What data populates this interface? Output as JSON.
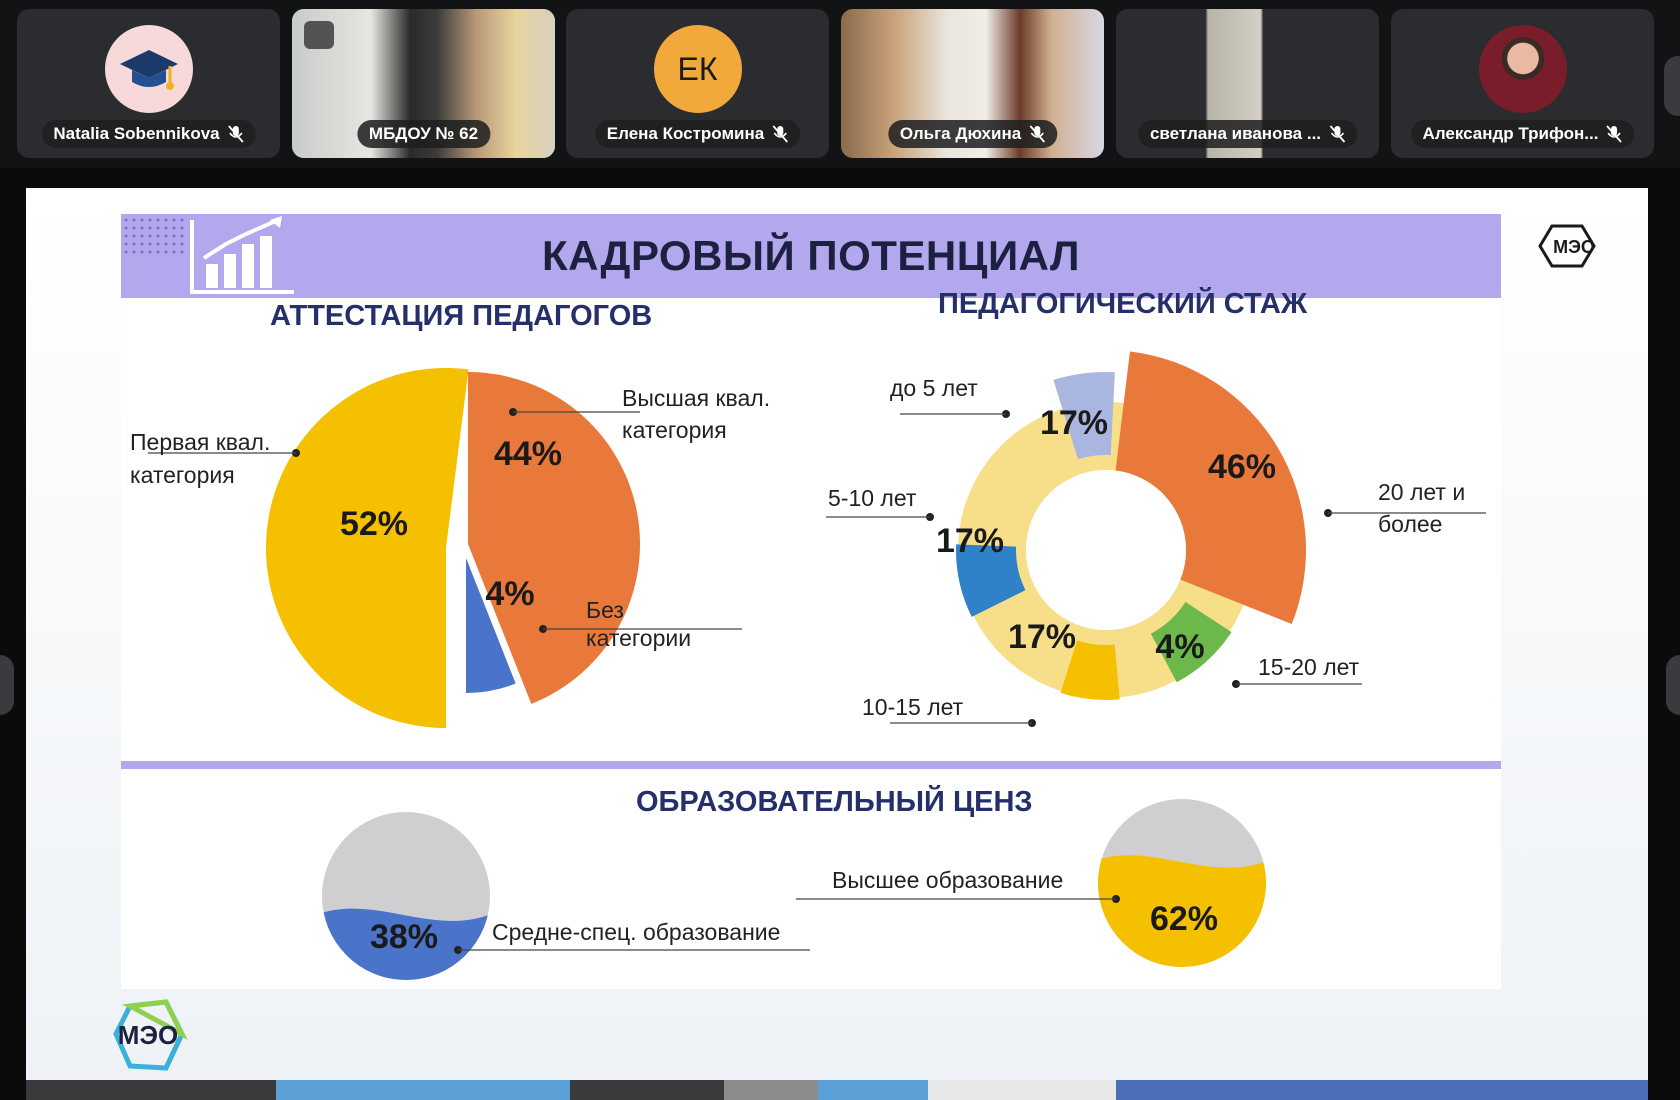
{
  "participants": [
    {
      "name": "Natalia Sobennikova",
      "avatar_type": "icon",
      "icon": "graduation-cap-icon",
      "avatar_bg": "#f7d9d9",
      "muted": true,
      "active": false
    },
    {
      "name": "МБДОУ № 62",
      "avatar_type": "video",
      "muted": false,
      "active": true
    },
    {
      "name": "Елена Костромина",
      "avatar_type": "initials",
      "initials": "ЕК",
      "avatar_bg": "#f2a93b",
      "muted": true,
      "active": false
    },
    {
      "name": "Ольга Дюхина",
      "avatar_type": "video",
      "muted": true,
      "active": false
    },
    {
      "name": "светлана иванова ...",
      "avatar_type": "video",
      "muted": true,
      "active": false
    },
    {
      "name": "Александр Трифон...",
      "avatar_type": "photo",
      "muted": true,
      "active": false
    }
  ],
  "slide": {
    "title": "КАДРОВЫЙ ПОТЕНЦИАЛ",
    "logo_text": "МЭО",
    "sections": {
      "attestation": "АТТЕСТАЦИЯ ПЕДАГОГОВ",
      "experience": "ПЕДАГОГИЧЕСКИЙ СТАЖ",
      "education": "ОБРАЗОВАТЕЛЬНЫЙ ЦЕНЗ"
    }
  },
  "chart_data": [
    {
      "type": "pie",
      "title": "АТТЕСТАЦИЯ ПЕДАГОГОВ",
      "categories": [
        "Первая квал. категория",
        "Высшая квал. категория",
        "Без категории"
      ],
      "values": [
        52,
        44,
        4
      ],
      "value_labels": [
        "52%",
        "44%",
        "4%"
      ],
      "label_lines": [
        [
          "Первая квал.",
          "категория"
        ],
        [
          "Высшая квал.",
          "категория"
        ],
        [
          "Без",
          "категории"
        ]
      ],
      "colors": [
        "#f5c000",
        "#e8793a",
        "#4a74c9"
      ]
    },
    {
      "type": "pie",
      "subtype": "nightingale-rose",
      "title": "ПЕДАГОГИЧЕСКИЙ СТАЖ",
      "categories": [
        "до 5 лет",
        "20 лет и более",
        "15-20 лет",
        "10-15 лет",
        "5-10 лет"
      ],
      "values": [
        17,
        46,
        4,
        17,
        17
      ],
      "value_labels": [
        "17%",
        "46%",
        "4%",
        "17%",
        "17%"
      ],
      "label_lines": [
        [
          "до 5 лет"
        ],
        [
          "20 лет и",
          "более"
        ],
        [
          "15-20 лет"
        ],
        [
          "10-15 лет"
        ],
        [
          "5-10 лет"
        ]
      ],
      "colors": [
        "#a9b7e0",
        "#e8793a",
        "#6cb84a",
        "#f5c000",
        "#2f82c8"
      ]
    },
    {
      "type": "pie",
      "subtype": "fill-gauge",
      "title": "ОБРАЗОВАТЕЛЬНЫЙ ЦЕНЗ",
      "categories": [
        "Средне-спец. образование",
        "Высшее образование"
      ],
      "values": [
        38,
        62
      ],
      "value_labels": [
        "38%",
        "62%"
      ],
      "colors": [
        "#4a74c9",
        "#f5c000"
      ],
      "empty_color": "#cfcfd2"
    }
  ]
}
